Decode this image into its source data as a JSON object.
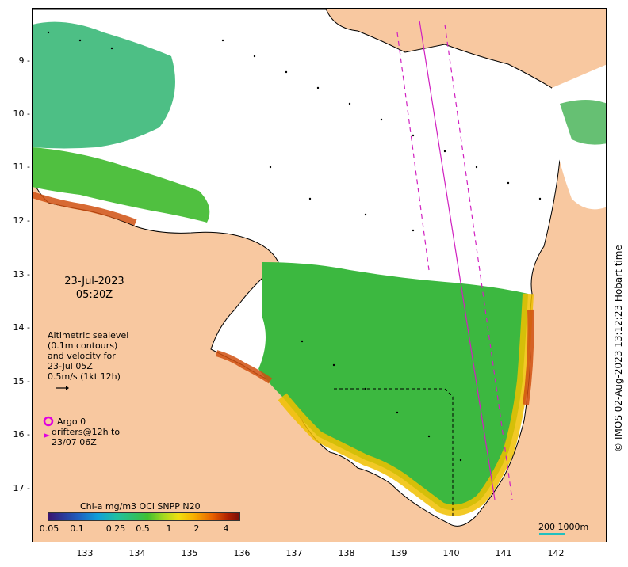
{
  "map": {
    "date_line1": "23-Jul-2023",
    "date_line2": "05:20Z",
    "altimetry_note": [
      "Altimetric sealevel",
      "(0.1m contours)",
      "and velocity for",
      "23-Jul 05Z",
      "0.5m/s (1kt 12h)"
    ],
    "argo_label": "Argo 0",
    "drifters_label": [
      "drifters@12h to",
      "23/07 06Z"
    ],
    "colorbar_title": "Chl-a mg/m3 OCi SNPP N20",
    "colorbar_ticks": [
      "0.05",
      "0.1",
      "0.25",
      "0.5",
      "1",
      "2",
      "4"
    ],
    "scale_label": "200  1000m",
    "credit": "© IMOS 02-Aug-2023 13:12:23 Hobart time",
    "lat_ticks": [
      "9",
      "10",
      "11",
      "12",
      "13",
      "14",
      "15",
      "16",
      "17"
    ],
    "lon_ticks": [
      "133",
      "134",
      "135",
      "136",
      "137",
      "138",
      "139",
      "140",
      "141",
      "142"
    ],
    "colors": {
      "land": "#f8c8a0",
      "ocean": "#ffffff",
      "argo": "#e000e0",
      "track": "#d020c0"
    }
  }
}
